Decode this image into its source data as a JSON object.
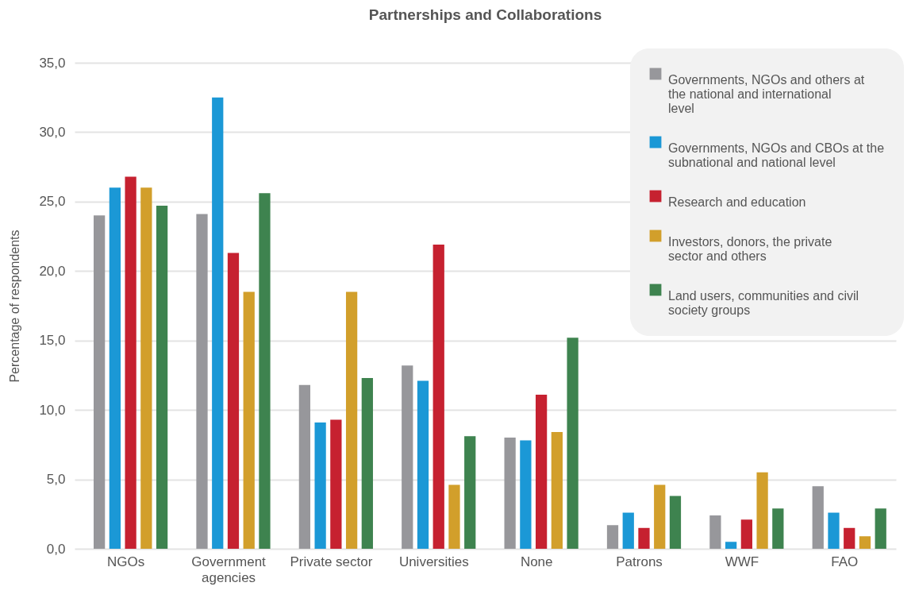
{
  "chart_data": {
    "type": "bar",
    "title": "Partnerships and Collaborations",
    "ylabel": "Percentage of respondents",
    "categories": [
      "NGOs",
      "Government agencies",
      "Private sector",
      "Universities",
      "None",
      "Patrons",
      "WWF",
      "FAO"
    ],
    "series": [
      {
        "name": "Governments, NGOs and others at the national and international level",
        "color": "#97979b",
        "values": [
          24.0,
          24.1,
          11.8,
          13.2,
          8.0,
          1.7,
          2.4,
          4.5
        ]
      },
      {
        "name": "Governments, NGOs and CBOs at the subnational and national level",
        "color": "#1b98d6",
        "values": [
          26.0,
          32.5,
          9.1,
          12.1,
          7.8,
          2.6,
          0.5,
          2.6
        ]
      },
      {
        "name": "Research and education",
        "color": "#c62130",
        "values": [
          26.8,
          21.3,
          9.3,
          21.9,
          11.1,
          1.5,
          2.1,
          1.5
        ]
      },
      {
        "name": "Investors, donors, the private sector and others",
        "color": "#d29f2b",
        "values": [
          26.0,
          18.5,
          18.5,
          4.6,
          8.4,
          4.6,
          5.5,
          0.9
        ]
      },
      {
        "name": "Land users, communities and civil society groups",
        "color": "#3e834f",
        "values": [
          24.7,
          25.6,
          12.3,
          8.1,
          15.2,
          3.8,
          2.9,
          2.9
        ]
      }
    ],
    "ylim": [
      0,
      35
    ],
    "yticks": [
      {
        "value": 0,
        "label": "0,0"
      },
      {
        "value": 5,
        "label": "5,0"
      },
      {
        "value": 10,
        "label": "10,0"
      },
      {
        "value": 15,
        "label": "15,0"
      },
      {
        "value": 20,
        "label": "20,0"
      },
      {
        "value": 25,
        "label": "25,0"
      },
      {
        "value": 30,
        "label": "30,0"
      },
      {
        "value": 35,
        "label": "35,0"
      }
    ],
    "grid": "y",
    "legend": "top right"
  }
}
